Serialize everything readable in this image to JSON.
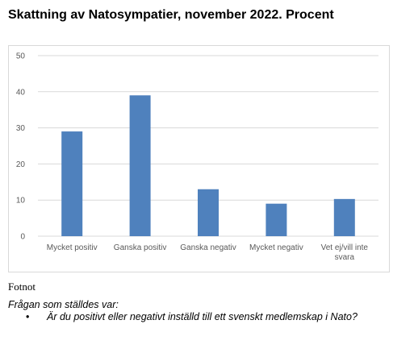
{
  "title": "Skattning av Natosympatier, november 2022. Procent",
  "chart_data": {
    "type": "bar",
    "categories": [
      "Mycket positiv",
      "Ganska positiv",
      "Ganska negativ",
      "Mycket negativ",
      "Vet ej/vill inte svara"
    ],
    "values": [
      29,
      39,
      13,
      9,
      10.3
    ],
    "ylim": [
      0,
      50
    ],
    "yticks": [
      0,
      10,
      20,
      30,
      40,
      50
    ],
    "grid": true,
    "bar_color": "#4f81bd",
    "grid_color": "#d9d9d9"
  },
  "footnote": {
    "heading": "Fotnot",
    "intro": "Frågan som ställdes var:",
    "questions": [
      "Är du positivt eller negativt inställd till ett svenskt medlemskap i Nato?"
    ]
  }
}
